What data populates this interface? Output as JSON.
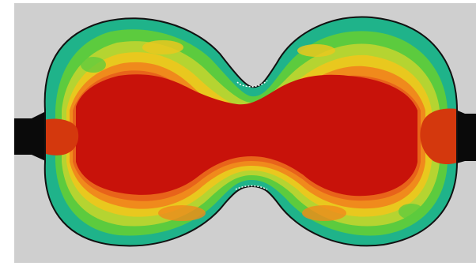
{
  "image": {
    "subject": "stress-contour-plot",
    "colors": {
      "page": "#ffffff",
      "canvas": "#cfcfcf",
      "outline": "#111111",
      "fixture": "#0a0a0a",
      "contour_red": "#c8120a",
      "contour_red_orange": "#d4380d",
      "contour_orange": "#e8631a",
      "contour_orange_yellow": "#f08a1c",
      "contour_yellow": "#e9c81e",
      "contour_yellow_green": "#b5d431",
      "contour_green": "#5ccb3e",
      "contour_teal": "#1fb38a"
    }
  }
}
